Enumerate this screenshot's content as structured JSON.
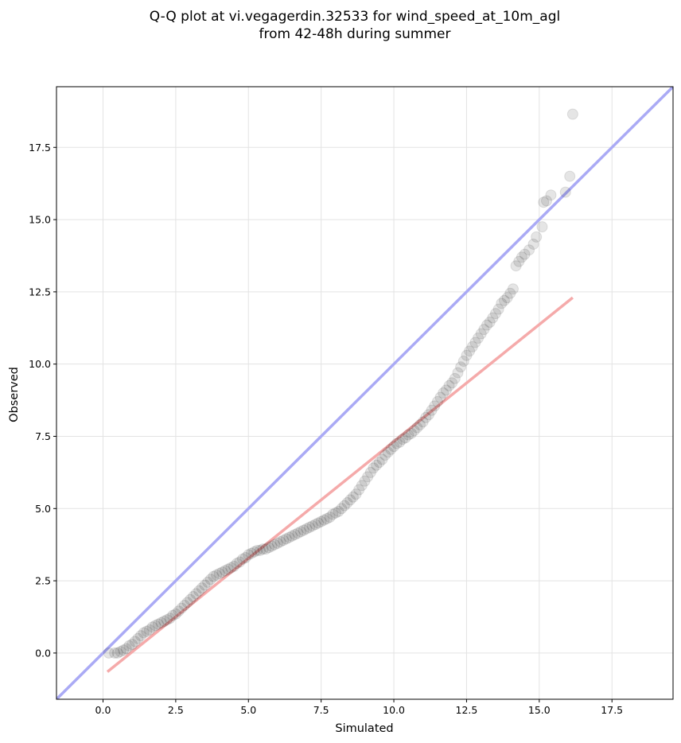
{
  "chart_data": {
    "type": "scatter",
    "title_lines": [
      "Q-Q plot at vi.vegagerdin.32533 for wind_speed_at_10m_agl",
      "from 42-48h during summer"
    ],
    "xlabel": "Simulated",
    "ylabel": "Observed",
    "xlim": [
      -1.6,
      19.6
    ],
    "ylim": [
      -1.6,
      19.6
    ],
    "x_ticks": [
      0.0,
      2.5,
      5.0,
      7.5,
      10.0,
      12.5,
      15.0,
      17.5
    ],
    "y_ticks": [
      0.0,
      2.5,
      5.0,
      7.5,
      10.0,
      12.5,
      15.0,
      17.5
    ],
    "x_tick_labels": [
      "0.0",
      "2.5",
      "5.0",
      "7.5",
      "10.0",
      "12.5",
      "15.0",
      "17.5"
    ],
    "y_tick_labels": [
      "0.0",
      "2.5",
      "5.0",
      "7.5",
      "10.0",
      "12.5",
      "15.0",
      "17.5"
    ],
    "grid": true,
    "identity_line": {
      "color": "#aaaaf5",
      "from": [
        -1.6,
        -1.6
      ],
      "to": [
        19.6,
        19.6
      ]
    },
    "fit_line": {
      "color": "#f5aaaa",
      "from": [
        0.15,
        -0.65
      ],
      "to": [
        16.15,
        12.3
      ]
    },
    "point_color": "#000000",
    "points": [
      [
        0.2,
        0.0
      ],
      [
        0.4,
        0.0
      ],
      [
        0.5,
        0.0
      ],
      [
        0.6,
        0.05
      ],
      [
        0.7,
        0.1
      ],
      [
        0.8,
        0.15
      ],
      [
        0.9,
        0.25
      ],
      [
        1.0,
        0.3
      ],
      [
        1.1,
        0.4
      ],
      [
        1.2,
        0.5
      ],
      [
        1.3,
        0.6
      ],
      [
        1.4,
        0.7
      ],
      [
        1.5,
        0.75
      ],
      [
        1.6,
        0.8
      ],
      [
        1.7,
        0.9
      ],
      [
        1.8,
        0.95
      ],
      [
        1.9,
        1.0
      ],
      [
        2.0,
        1.05
      ],
      [
        2.1,
        1.1
      ],
      [
        2.2,
        1.15
      ],
      [
        2.3,
        1.2
      ],
      [
        2.4,
        1.3
      ],
      [
        2.5,
        1.35
      ],
      [
        2.6,
        1.45
      ],
      [
        2.7,
        1.55
      ],
      [
        2.8,
        1.65
      ],
      [
        2.9,
        1.75
      ],
      [
        3.0,
        1.85
      ],
      [
        3.1,
        1.95
      ],
      [
        3.2,
        2.05
      ],
      [
        3.3,
        2.15
      ],
      [
        3.4,
        2.25
      ],
      [
        3.5,
        2.35
      ],
      [
        3.6,
        2.45
      ],
      [
        3.7,
        2.55
      ],
      [
        3.8,
        2.65
      ],
      [
        3.9,
        2.7
      ],
      [
        4.0,
        2.75
      ],
      [
        4.1,
        2.8
      ],
      [
        4.2,
        2.85
      ],
      [
        4.3,
        2.9
      ],
      [
        4.4,
        2.95
      ],
      [
        4.5,
        3.0
      ],
      [
        4.6,
        3.1
      ],
      [
        4.7,
        3.15
      ],
      [
        4.8,
        3.25
      ],
      [
        4.9,
        3.3
      ],
      [
        5.0,
        3.4
      ],
      [
        5.1,
        3.45
      ],
      [
        5.2,
        3.5
      ],
      [
        5.3,
        3.55
      ],
      [
        5.4,
        3.55
      ],
      [
        5.5,
        3.6
      ],
      [
        5.6,
        3.6
      ],
      [
        5.7,
        3.65
      ],
      [
        5.8,
        3.7
      ],
      [
        5.9,
        3.75
      ],
      [
        6.0,
        3.8
      ],
      [
        6.1,
        3.85
      ],
      [
        6.2,
        3.9
      ],
      [
        6.3,
        3.95
      ],
      [
        6.4,
        4.0
      ],
      [
        6.5,
        4.05
      ],
      [
        6.6,
        4.1
      ],
      [
        6.7,
        4.15
      ],
      [
        6.8,
        4.2
      ],
      [
        6.9,
        4.25
      ],
      [
        7.0,
        4.3
      ],
      [
        7.1,
        4.35
      ],
      [
        7.2,
        4.4
      ],
      [
        7.3,
        4.45
      ],
      [
        7.4,
        4.5
      ],
      [
        7.5,
        4.55
      ],
      [
        7.6,
        4.6
      ],
      [
        7.7,
        4.65
      ],
      [
        7.8,
        4.7
      ],
      [
        7.9,
        4.8
      ],
      [
        8.0,
        4.85
      ],
      [
        8.1,
        4.9
      ],
      [
        8.2,
        5.0
      ],
      [
        8.3,
        5.1
      ],
      [
        8.4,
        5.2
      ],
      [
        8.5,
        5.3
      ],
      [
        8.6,
        5.4
      ],
      [
        8.7,
        5.5
      ],
      [
        8.8,
        5.65
      ],
      [
        8.9,
        5.8
      ],
      [
        9.0,
        5.95
      ],
      [
        9.1,
        6.1
      ],
      [
        9.2,
        6.25
      ],
      [
        9.3,
        6.4
      ],
      [
        9.4,
        6.5
      ],
      [
        9.5,
        6.6
      ],
      [
        9.6,
        6.7
      ],
      [
        9.7,
        6.85
      ],
      [
        9.8,
        6.95
      ],
      [
        9.9,
        7.05
      ],
      [
        10.0,
        7.15
      ],
      [
        10.1,
        7.25
      ],
      [
        10.2,
        7.3
      ],
      [
        10.3,
        7.4
      ],
      [
        10.4,
        7.45
      ],
      [
        10.5,
        7.55
      ],
      [
        10.6,
        7.6
      ],
      [
        10.7,
        7.7
      ],
      [
        10.8,
        7.8
      ],
      [
        10.9,
        7.9
      ],
      [
        11.0,
        8.0
      ],
      [
        11.1,
        8.15
      ],
      [
        11.2,
        8.25
      ],
      [
        11.3,
        8.4
      ],
      [
        11.4,
        8.55
      ],
      [
        11.5,
        8.7
      ],
      [
        11.6,
        8.85
      ],
      [
        11.7,
        9.0
      ],
      [
        11.8,
        9.1
      ],
      [
        11.9,
        9.25
      ],
      [
        12.0,
        9.35
      ],
      [
        12.1,
        9.5
      ],
      [
        12.2,
        9.7
      ],
      [
        12.3,
        9.9
      ],
      [
        12.4,
        10.1
      ],
      [
        12.5,
        10.3
      ],
      [
        12.6,
        10.45
      ],
      [
        12.7,
        10.6
      ],
      [
        12.8,
        10.75
      ],
      [
        12.9,
        10.9
      ],
      [
        13.0,
        11.05
      ],
      [
        13.1,
        11.2
      ],
      [
        13.2,
        11.35
      ],
      [
        13.3,
        11.45
      ],
      [
        13.4,
        11.6
      ],
      [
        13.5,
        11.75
      ],
      [
        13.6,
        11.9
      ],
      [
        13.7,
        12.1
      ],
      [
        13.8,
        12.2
      ],
      [
        13.9,
        12.3
      ],
      [
        14.0,
        12.45
      ],
      [
        14.1,
        12.6
      ],
      [
        14.2,
        13.4
      ],
      [
        14.3,
        13.55
      ],
      [
        14.4,
        13.7
      ],
      [
        14.5,
        13.8
      ],
      [
        14.65,
        13.95
      ],
      [
        14.8,
        14.15
      ],
      [
        14.9,
        14.4
      ],
      [
        15.1,
        14.75
      ],
      [
        15.15,
        15.6
      ],
      [
        15.25,
        15.65
      ],
      [
        15.4,
        15.85
      ],
      [
        15.9,
        15.95
      ],
      [
        16.05,
        16.5
      ],
      [
        16.15,
        18.65
      ]
    ]
  }
}
